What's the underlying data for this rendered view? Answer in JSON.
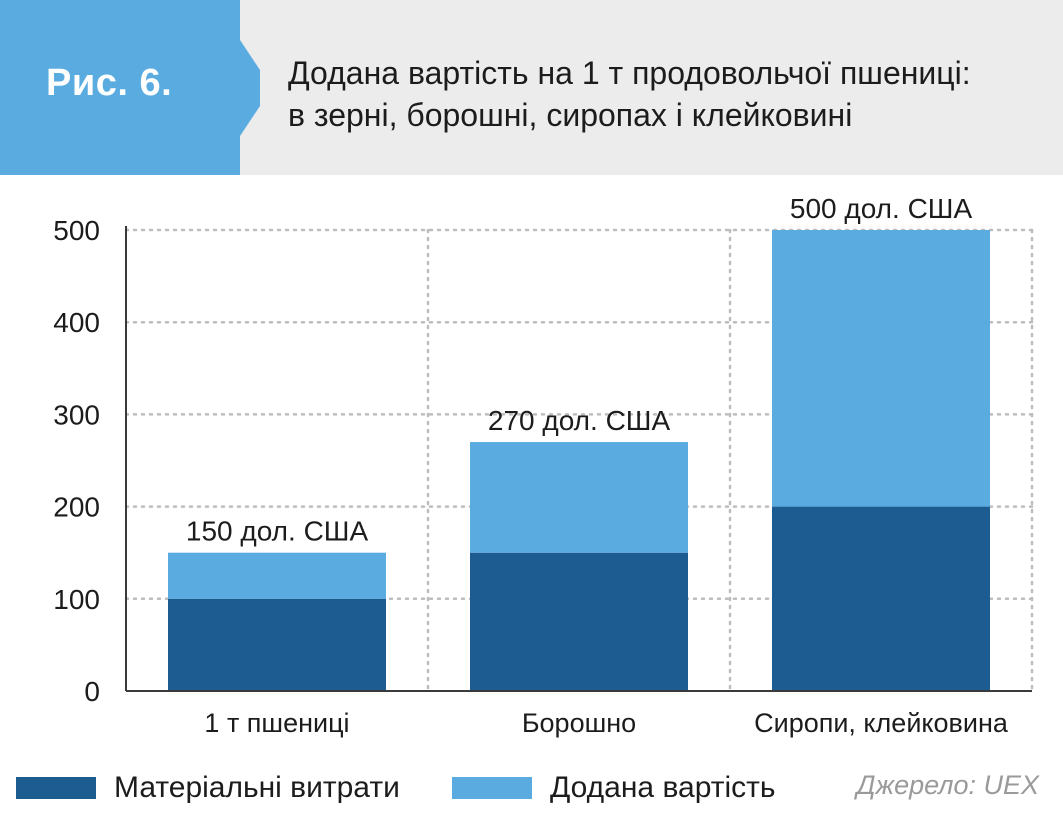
{
  "header": {
    "figure_label": "Рис. 6.",
    "title_line1": "Додана вартість на 1 т продовольчої пшениці:",
    "title_line2": "в зерні, борошні, сиропах і клейковині"
  },
  "colors": {
    "badge": "#5aace0",
    "material": "#1c5c90",
    "added": "#5aace0",
    "grid": "#bdbdbd"
  },
  "chart_data": {
    "type": "bar",
    "stacked": true,
    "categories": [
      "1 т пшениці",
      "Борошно",
      "Сиропи, клейковина"
    ],
    "series": [
      {
        "name": "Матеріальні витрати",
        "values": [
          100,
          150,
          200
        ]
      },
      {
        "name": "Додана вартість",
        "values": [
          50,
          120,
          300
        ]
      }
    ],
    "totals_labels": [
      "150 дол. США",
      "270 дол. США",
      "500 дол. США"
    ],
    "ylim": [
      0,
      500
    ],
    "yticks": [
      0,
      100,
      200,
      300,
      400,
      500
    ],
    "grid": true,
    "legend_position": "bottom"
  },
  "legend": {
    "material": "Матеріальні витрати",
    "added": "Додана вартість"
  },
  "source": "Джерело: UEX"
}
